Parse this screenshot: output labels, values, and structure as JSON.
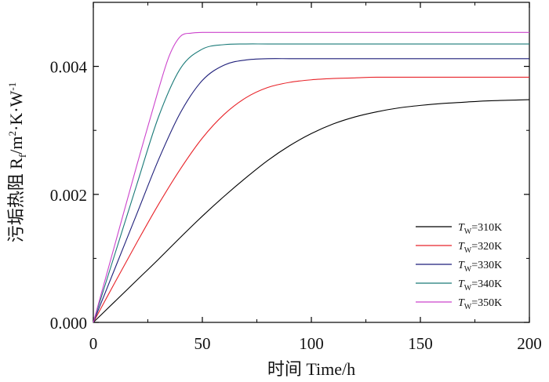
{
  "chart_data": {
    "type": "line",
    "title": "",
    "xlabel": "时间 Time/h",
    "ylabel": "污垢热阻 R",
    "ylabel_sub": "f",
    "ylabel_unit": "/m",
    "ylabel_unit_rest": "·K·W",
    "ylabel_sup2": "2",
    "ylabel_supneg1": "-1",
    "xlim": [
      0,
      200
    ],
    "ylim": [
      0,
      0.005
    ],
    "xticks": [
      0,
      50,
      100,
      150,
      200
    ],
    "xtick_labels": [
      "0",
      "50",
      "100",
      "150",
      "200"
    ],
    "yticks": [
      0,
      0.002,
      0.004
    ],
    "ytick_labels": [
      "0.000",
      "0.002",
      "0.004"
    ],
    "grid": false,
    "legend_position": "lower-right",
    "series": [
      {
        "name": "T_W=310K",
        "label_var": "T",
        "label_sub": "W",
        "label_rest": "=310K",
        "color": "#000000",
        "x": [
          0,
          10,
          20,
          30,
          40,
          50,
          60,
          70,
          80,
          90,
          100,
          110,
          120,
          130,
          140,
          150,
          160,
          170,
          180,
          190,
          200
        ],
        "y": [
          0,
          0.00033,
          0.00066,
          0.00099,
          0.00133,
          0.00166,
          0.00197,
          0.00226,
          0.00253,
          0.00276,
          0.00295,
          0.0031,
          0.00321,
          0.00329,
          0.00335,
          0.00339,
          0.00342,
          0.00344,
          0.00346,
          0.00347,
          0.00348
        ]
      },
      {
        "name": "T_W=320K",
        "label_var": "T",
        "label_sub": "W",
        "label_rest": "=320K",
        "color": "#e8242a",
        "x": [
          0,
          10,
          20,
          30,
          40,
          50,
          60,
          70,
          80,
          90,
          100,
          110,
          120,
          130,
          150,
          200
        ],
        "y": [
          0,
          0.00063,
          0.00125,
          0.00185,
          0.0024,
          0.00288,
          0.00325,
          0.00351,
          0.00367,
          0.00375,
          0.00379,
          0.00381,
          0.00382,
          0.00383,
          0.00383,
          0.00383
        ]
      },
      {
        "name": "T_W=330K",
        "label_var": "T",
        "label_sub": "W",
        "label_rest": "=330K",
        "color": "#1f1f7a",
        "x": [
          0,
          10,
          20,
          30,
          40,
          50,
          60,
          70,
          80,
          90,
          100,
          120,
          200
        ],
        "y": [
          0,
          0.00085,
          0.0017,
          0.00255,
          0.00328,
          0.00378,
          0.00402,
          0.0041,
          0.00412,
          0.00412,
          0.00412,
          0.00412,
          0.00412
        ]
      },
      {
        "name": "T_W=340K",
        "label_var": "T",
        "label_sub": "W",
        "label_rest": "=340K",
        "color": "#1a7a78",
        "x": [
          0,
          10,
          20,
          30,
          40,
          50,
          60,
          70,
          80,
          100,
          200
        ],
        "y": [
          0,
          0.00108,
          0.00216,
          0.00322,
          0.00397,
          0.00427,
          0.00434,
          0.00435,
          0.00435,
          0.00435,
          0.00435
        ]
      },
      {
        "name": "T_W=350K",
        "label_var": "T",
        "label_sub": "W",
        "label_rest": "=350K",
        "color": "#cc44cc",
        "x": [
          0,
          10,
          20,
          30,
          35,
          40,
          45,
          50,
          60,
          100,
          200
        ],
        "y": [
          0,
          0.00123,
          0.00246,
          0.00365,
          0.00418,
          0.00447,
          0.00452,
          0.00453,
          0.00453,
          0.00453,
          0.00453
        ]
      }
    ]
  }
}
